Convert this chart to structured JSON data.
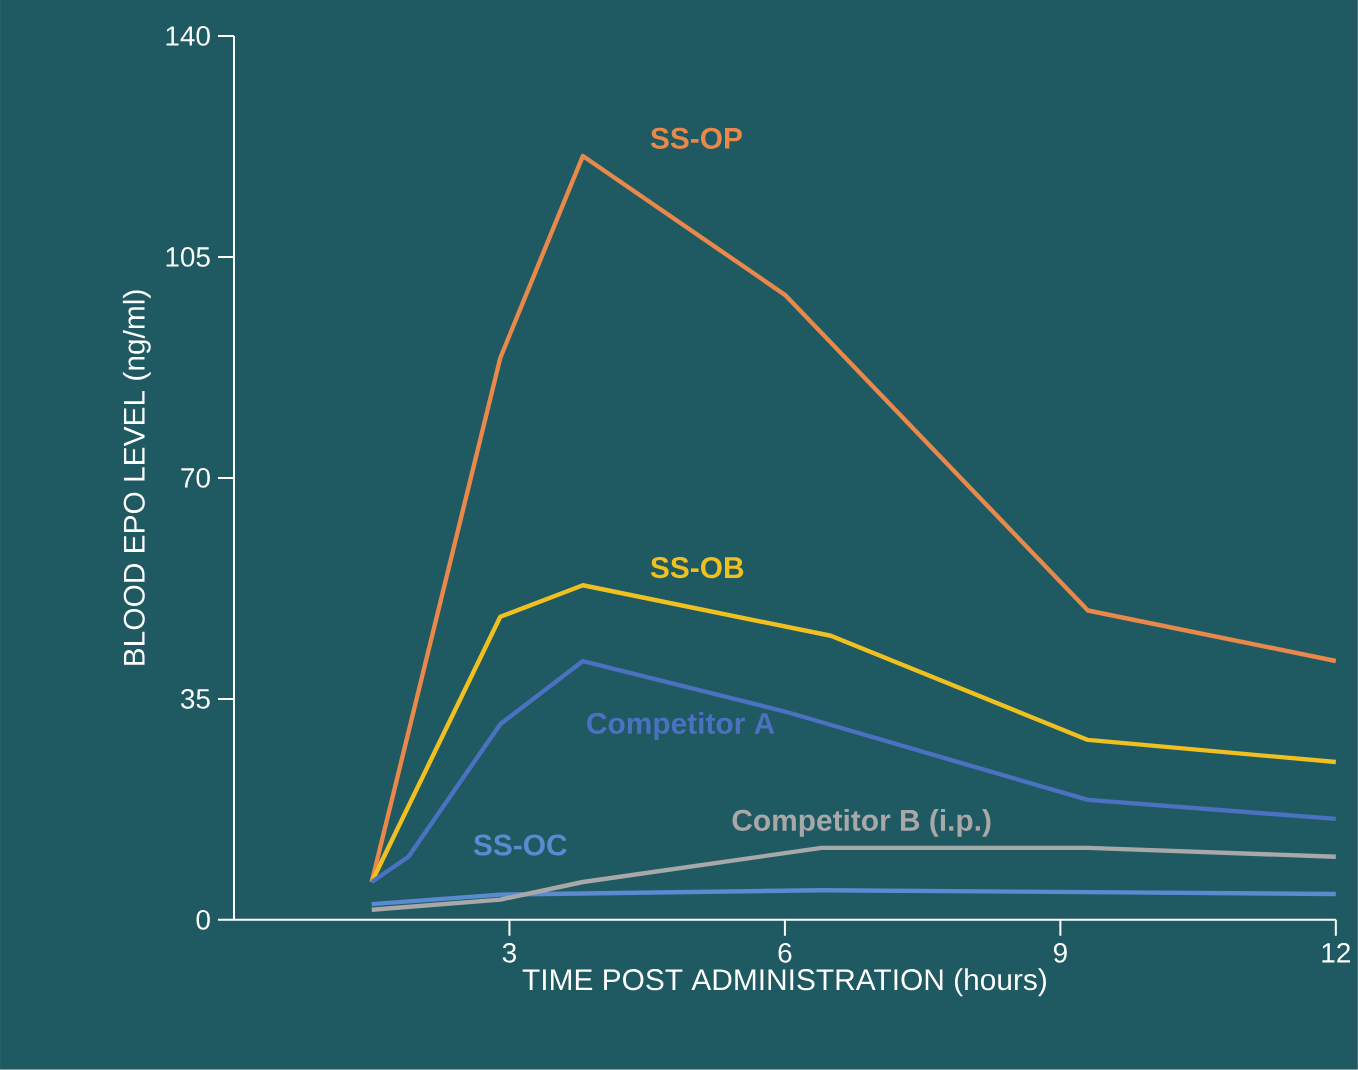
{
  "chart_data": {
    "type": "line",
    "xlabel": "TIME POST ADMINISTRATION (hours)",
    "ylabel": "BLOOD EPO LEVEL (ng/ml)",
    "xlim": [
      0,
      12
    ],
    "xticks": [
      3,
      6,
      9,
      12
    ],
    "ylim": [
      0,
      140
    ],
    "yticks": [
      0,
      35,
      70,
      105,
      140
    ],
    "marker": "none",
    "line_style": "solid",
    "series": [
      {
        "name": "SS-OP",
        "color": "#e8884a",
        "x": [
          1.5,
          2.9,
          3.8,
          6.0,
          9.3,
          12
        ],
        "values": [
          6,
          89,
          121,
          99,
          49,
          41
        ]
      },
      {
        "name": "SS-OB",
        "color": "#f0c020",
        "x": [
          1.5,
          2.9,
          3.8,
          6.5,
          9.3,
          12
        ],
        "values": [
          6,
          48,
          53,
          45,
          28.5,
          25
        ]
      },
      {
        "name": "Competitor A",
        "color": "#4a72c0",
        "x": [
          1.5,
          1.9,
          2.9,
          3.8,
          6.0,
          9.3,
          12
        ],
        "values": [
          6,
          10,
          31,
          41,
          33,
          19,
          16
        ]
      },
      {
        "name": "SS-OC",
        "color": "#5a8ad0",
        "x": [
          1.5,
          2.9,
          6.4,
          9.3,
          12
        ],
        "values": [
          2.5,
          4,
          4.7,
          4.4,
          4.1
        ]
      },
      {
        "name": "Competitor B (i.p.)",
        "color": "#a8a8a8",
        "x": [
          1.5,
          2.9,
          3.8,
          6.4,
          9.3,
          12
        ],
        "values": [
          1.6,
          3.2,
          6,
          11.4,
          11.4,
          10
        ]
      }
    ]
  }
}
